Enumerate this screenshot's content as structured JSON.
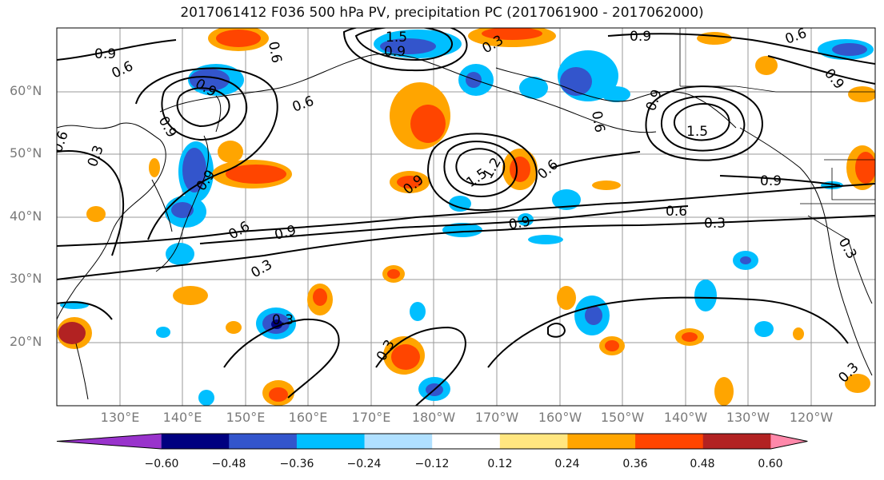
{
  "title": "2017061412 F036 500 hPa PV, precipitation PC (2017061900 - 2017062000)",
  "latitude_labels": [
    "60°N",
    "50°N",
    "40°N",
    "30°N",
    "20°N"
  ],
  "longitude_labels": [
    "130°E",
    "140°E",
    "150°E",
    "160°E",
    "170°E",
    "180°W",
    "170°W",
    "160°W",
    "150°W",
    "140°W",
    "130°W",
    "120°W"
  ],
  "contour_labels": [
    "1.5",
    "0.9",
    "0.9",
    "0.6",
    "0.9",
    "0.6",
    "0.9",
    "0.3",
    "0.6",
    "0.9",
    "0.3",
    "0.9",
    "0.6",
    "0.9",
    "0.6",
    "0.6",
    "0.9",
    "0.3",
    "1.5",
    "0.9",
    "0.6",
    "0.3",
    "0.9",
    "0.3",
    "1.5",
    "1.2",
    "0.9",
    "0.6",
    "0.6",
    "0.9",
    "0.3",
    "0.3",
    "0.3"
  ],
  "colorbar": {
    "ticks": [
      "−0.60",
      "−0.48",
      "−0.36",
      "−0.24",
      "−0.12",
      "0.12",
      "0.24",
      "0.36",
      "0.48",
      "0.60"
    ],
    "colors": [
      "#9933cc",
      "#000080",
      "#3355cc",
      "#00bfff",
      "#b0e0ff",
      "#ffffff",
      "#ffe680",
      "#ffa500",
      "#ff4500",
      "#b22222",
      "#ff88aa"
    ]
  }
}
